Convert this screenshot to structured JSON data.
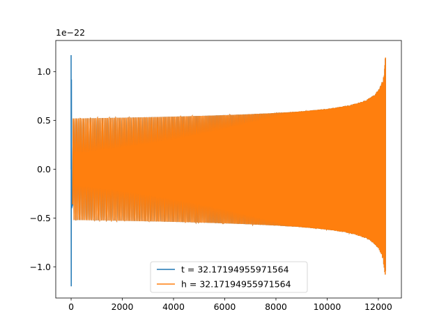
{
  "chart_data": {
    "type": "line",
    "title": "",
    "xlabel": "",
    "ylabel": "",
    "offset_label": "1e−22",
    "xlim": [
      -600,
      12900
    ],
    "ylim": [
      -1.32,
      1.32
    ],
    "y_scale_factor": 1e-22,
    "xticks": [
      0,
      2000,
      4000,
      6000,
      8000,
      10000,
      12000
    ],
    "xtick_labels": [
      "0",
      "2000",
      "4000",
      "6000",
      "8000",
      "10000",
      "12000"
    ],
    "yticks": [
      -1.0,
      -0.5,
      0.0,
      0.5,
      1.0
    ],
    "ytick_labels": [
      "−1.0",
      "−0.5",
      "0.0",
      "0.5",
      "1.0"
    ],
    "grid": false,
    "legend_position": "lower center",
    "series": [
      {
        "name": "t = 32.17194955971564",
        "color": "#1f77b4",
        "description_values": {
          "initial_spike_x": 0,
          "initial_spike_peak": 1.17,
          "initial_spike_trough": -1.2,
          "start_amplitude": 0.52,
          "end_x": 12280,
          "end_amplitude": 1.2
        }
      },
      {
        "name": "h = 32.17194955971564",
        "color": "#ff7f0e",
        "description_values": {
          "start_x": 60,
          "start_amplitude": 0.52,
          "end_x": 12280,
          "end_amplitude": 1.2
        }
      }
    ]
  }
}
